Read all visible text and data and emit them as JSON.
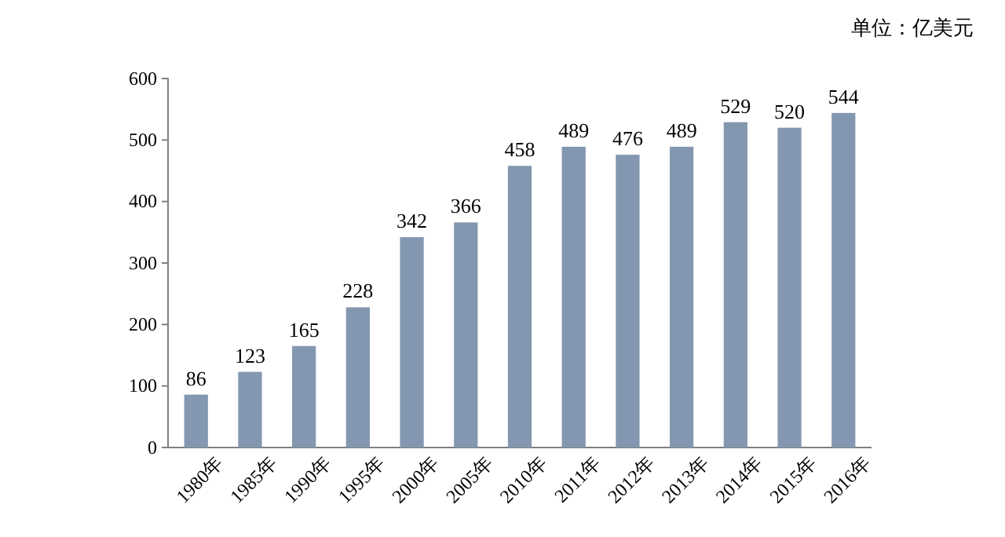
{
  "chart_data": {
    "type": "bar",
    "annotations": [
      "单位：亿美元"
    ],
    "categories": [
      "1980年",
      "1985年",
      "1990年",
      "1995年",
      "2000年",
      "2005年",
      "2010年",
      "2011年",
      "2012年",
      "2013年",
      "2014年",
      "2015年",
      "2016年"
    ],
    "values": [
      86,
      123,
      165,
      228,
      342,
      366,
      458,
      489,
      476,
      489,
      529,
      520,
      544
    ],
    "color": "#8497b0",
    "ylim": [
      0,
      600
    ],
    "yticks": [
      0,
      100,
      200,
      300,
      400,
      500,
      600
    ],
    "data_labels": true,
    "grid": false
  }
}
